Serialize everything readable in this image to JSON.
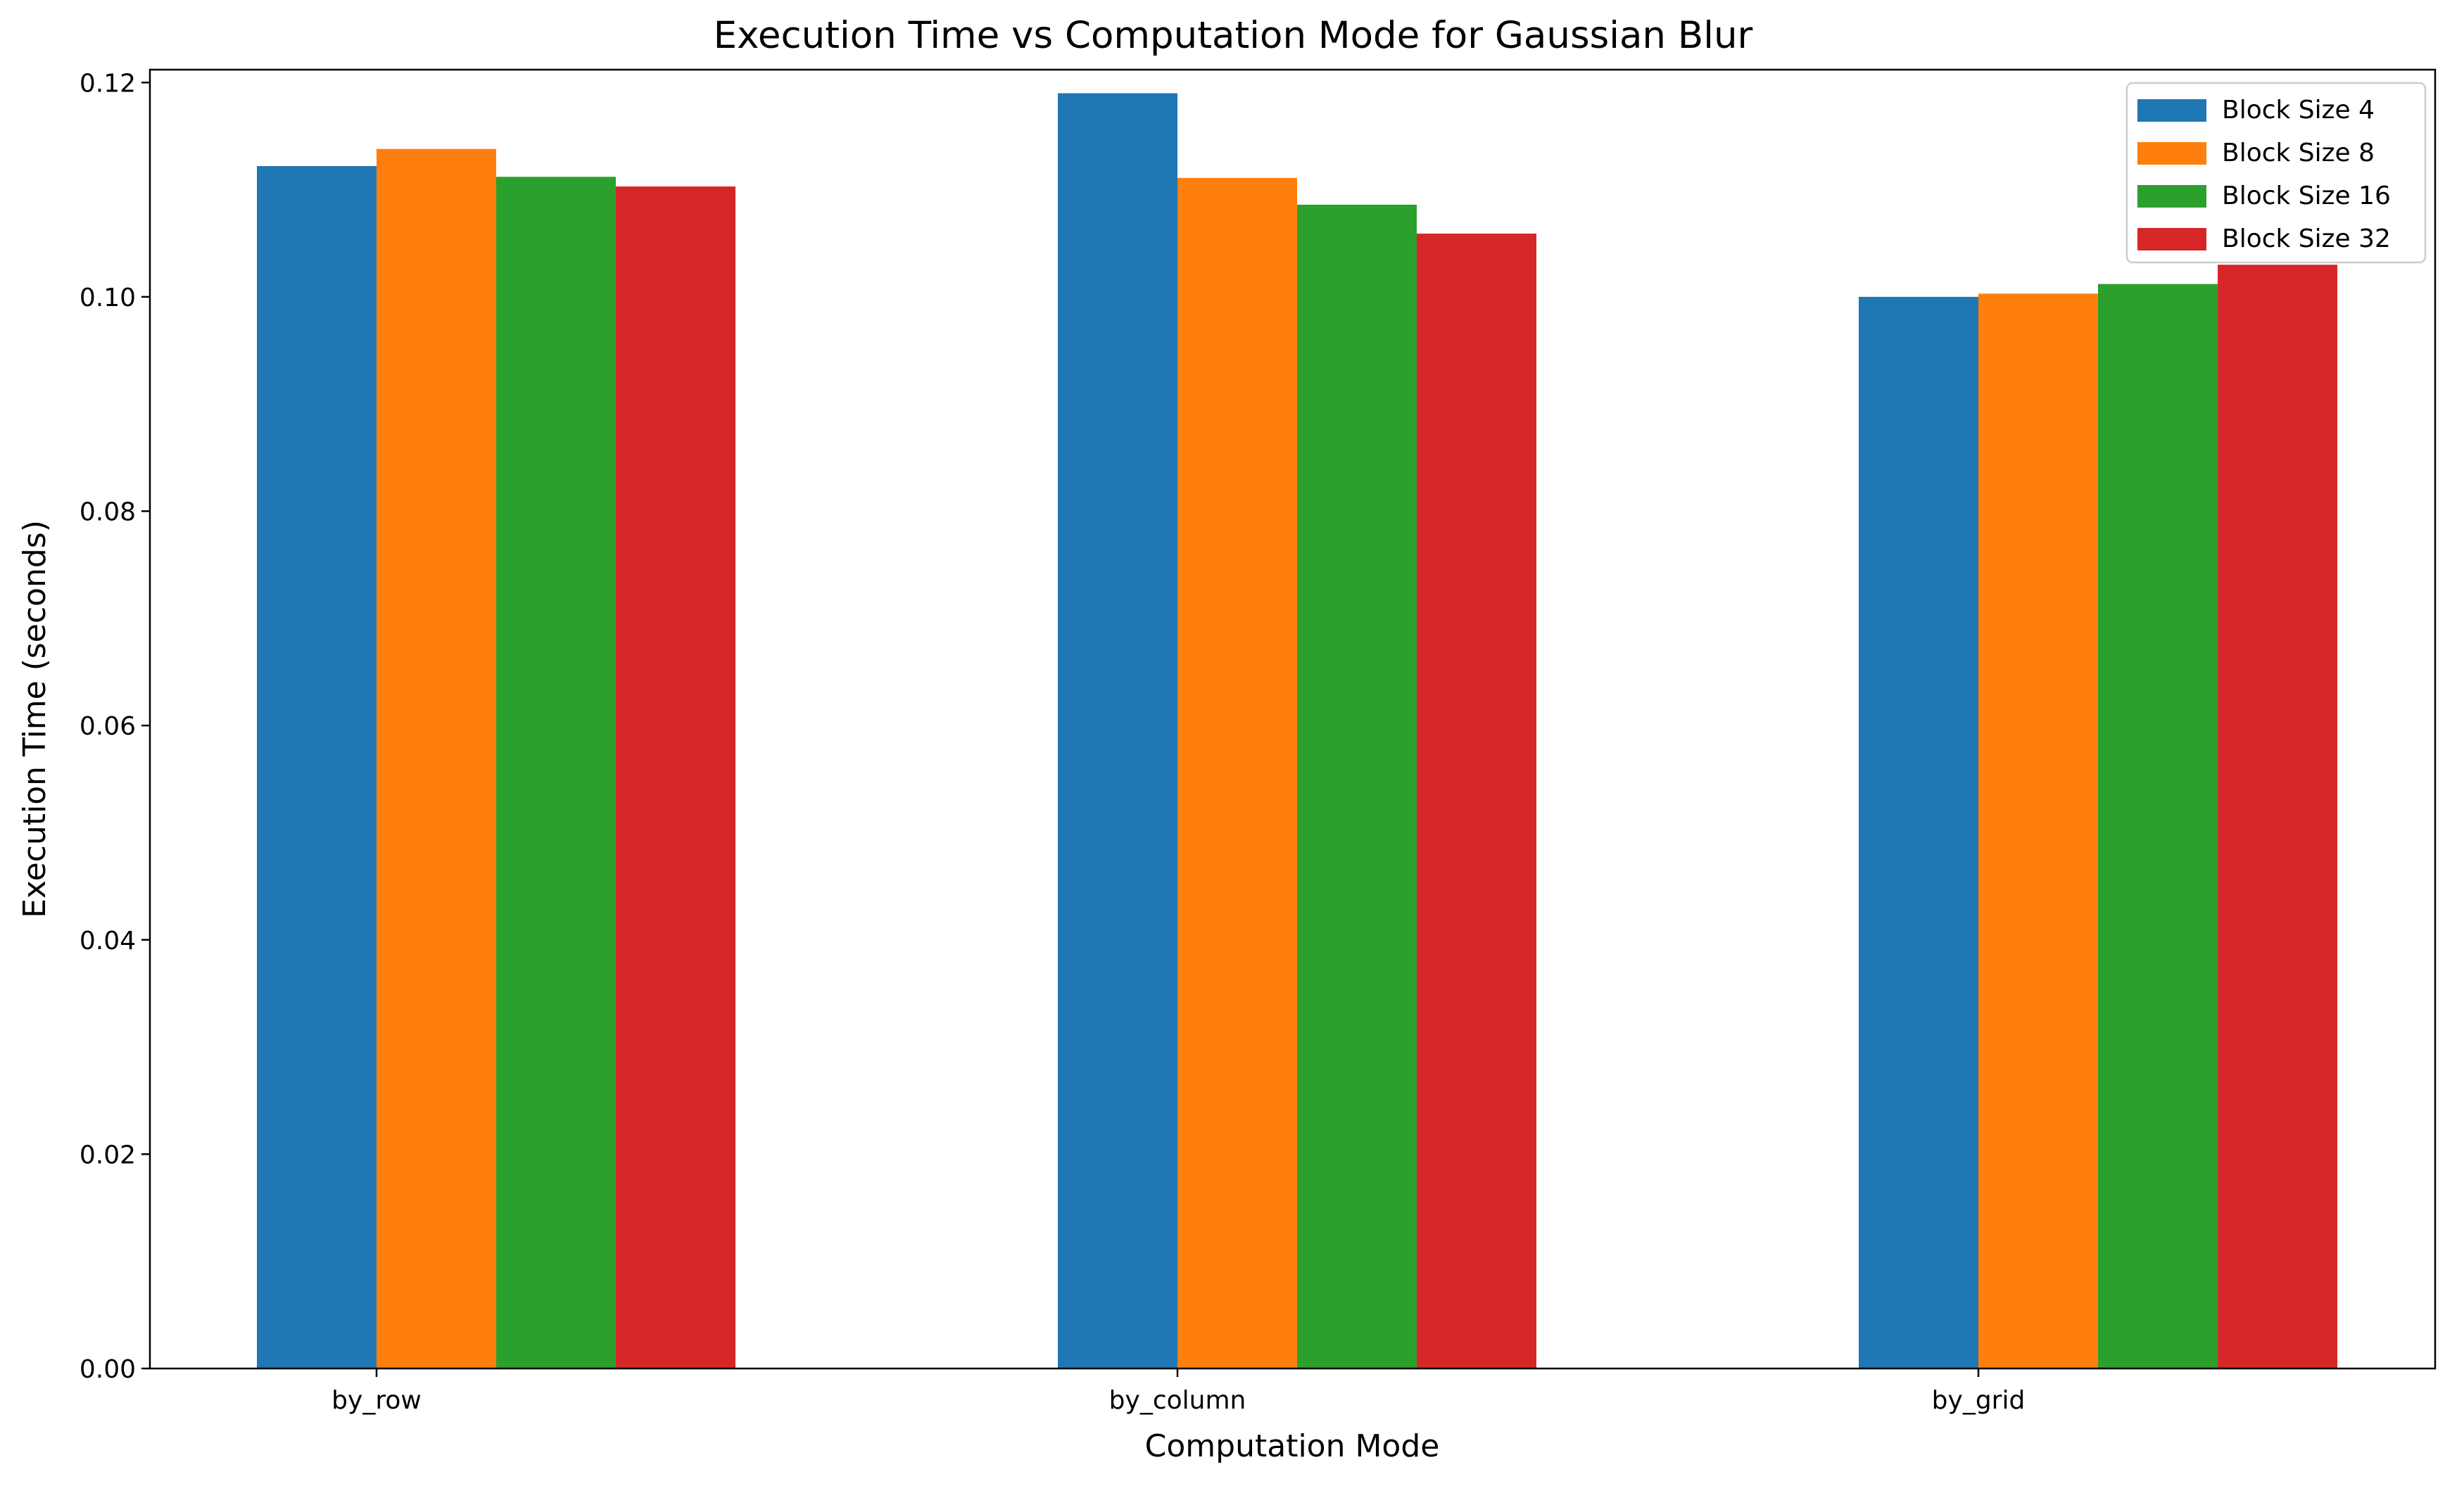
{
  "chart_data": {
    "type": "bar",
    "title": "Execution Time vs Computation Mode for Gaussian Blur",
    "xlabel": "Computation Mode",
    "ylabel": "Execution Time (seconds)",
    "categories": [
      "by_row",
      "by_column",
      "by_grid"
    ],
    "series": [
      {
        "name": "Block Size 4",
        "color": "#1f77b4",
        "values": [
          0.1122,
          0.119,
          0.1
        ]
      },
      {
        "name": "Block Size 8",
        "color": "#ff7f0e",
        "values": [
          0.1138,
          0.1111,
          0.1003
        ]
      },
      {
        "name": "Block Size 16",
        "color": "#2ca02c",
        "values": [
          0.1112,
          0.1086,
          0.1012
        ]
      },
      {
        "name": "Block Size 32",
        "color": "#d62728",
        "values": [
          0.1103,
          0.1059,
          0.103
        ]
      }
    ],
    "ylim": [
      0,
      0.1212
    ],
    "yticks": [
      "0.00",
      "0.02",
      "0.04",
      "0.06",
      "0.08",
      "0.10",
      "0.12"
    ],
    "grid": false,
    "legend_position": "top-right"
  }
}
